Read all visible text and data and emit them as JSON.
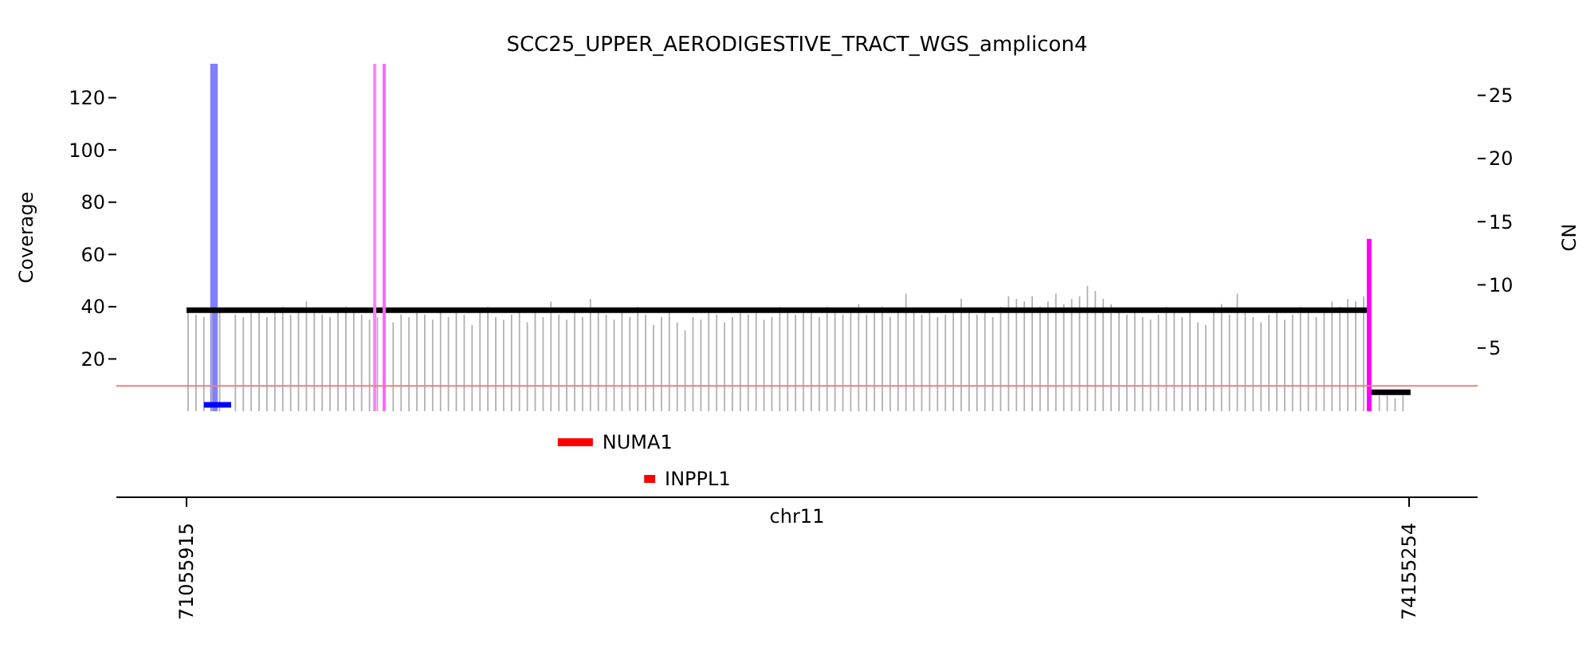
{
  "chart_data": [
    {
      "type": "bar",
      "title": "SCC25_UPPER_AERODIGESTIVE_TRACT_WGS_amplicon4",
      "ylabel": "Coverage",
      "y2label": "CN",
      "xlim": [
        70878000,
        74329000
      ],
      "ylim": [
        0,
        133
      ],
      "yticks": [
        20,
        40,
        60,
        80,
        100,
        120
      ],
      "y2lim": [
        0,
        27.5
      ],
      "y2ticks": [
        5,
        10,
        15,
        20,
        25
      ],
      "tick_labels": "y",
      "series": [
        {
          "type": "bar",
          "color": "#b0b0b0",
          "x": [
            71060000,
            71080000,
            71100000,
            71120000,
            71140000,
            71160000,
            71180000,
            71200000,
            71220000,
            71240000,
            71260000,
            71280000,
            71300000,
            71320000,
            71340000,
            71360000,
            71380000,
            71400000,
            71420000,
            71440000,
            71460000,
            71480000,
            71500000,
            71520000,
            71540000,
            71560000,
            71580000,
            71600000,
            71620000,
            71640000,
            71660000,
            71680000,
            71700000,
            71720000,
            71740000,
            71760000,
            71780000,
            71800000,
            71820000,
            71840000,
            71860000,
            71880000,
            71900000,
            71920000,
            71940000,
            71960000,
            71980000,
            72000000,
            72020000,
            72040000,
            72060000,
            72080000,
            72100000,
            72120000,
            72140000,
            72160000,
            72180000,
            72200000,
            72220000,
            72240000,
            72260000,
            72280000,
            72300000,
            72320000,
            72340000,
            72360000,
            72380000,
            72400000,
            72420000,
            72440000,
            72460000,
            72480000,
            72500000,
            72520000,
            72540000,
            72560000,
            72580000,
            72600000,
            72620000,
            72640000,
            72660000,
            72680000,
            72700000,
            72720000,
            72740000,
            72760000,
            72780000,
            72800000,
            72820000,
            72840000,
            72860000,
            72880000,
            72900000,
            72920000,
            72940000,
            72960000,
            72980000,
            73000000,
            73020000,
            73040000,
            73060000,
            73080000,
            73100000,
            73120000,
            73140000,
            73160000,
            73180000,
            73200000,
            73220000,
            73240000,
            73260000,
            73280000,
            73300000,
            73320000,
            73340000,
            73360000,
            73380000,
            73400000,
            73420000,
            73440000,
            73460000,
            73480000,
            73500000,
            73520000,
            73540000,
            73560000,
            73580000,
            73600000,
            73620000,
            73640000,
            73660000,
            73680000,
            73700000,
            73720000,
            73740000,
            73760000,
            73780000,
            73800000,
            73820000,
            73840000,
            73860000,
            73880000,
            73900000,
            73920000,
            73940000,
            73960000,
            73980000,
            74000000,
            74020000,
            74040000,
            74060000,
            74080000,
            74100000,
            74120000,
            74140000
          ],
          "values": [
            38,
            37,
            36,
            39,
            38,
            null,
            37,
            36,
            38,
            39,
            36,
            38,
            40,
            37,
            39,
            42,
            38,
            37,
            36,
            38,
            40,
            39,
            37,
            35,
            36,
            null,
            34,
            37,
            36,
            38,
            37,
            35,
            39,
            36,
            38,
            37,
            33,
            38,
            40,
            36,
            35,
            37,
            39,
            34,
            38,
            36,
            42,
            37,
            35,
            38,
            36,
            43,
            39,
            37,
            35,
            38,
            36,
            40,
            37,
            33,
            36,
            38,
            34,
            31,
            36,
            35,
            38,
            37,
            34,
            36,
            39,
            37,
            38,
            35,
            36,
            40,
            38,
            37,
            39,
            38,
            36,
            40,
            38,
            37,
            39,
            41,
            37,
            38,
            40,
            36,
            38,
            45,
            39,
            37,
            38,
            36,
            37,
            38,
            43,
            38,
            37,
            39,
            36,
            40,
            44,
            43,
            42,
            44,
            40,
            42,
            45,
            41,
            43,
            44,
            48,
            46,
            43,
            41,
            38,
            37,
            39,
            36,
            35,
            37,
            40,
            38,
            36,
            39,
            34,
            33,
            38,
            41,
            37,
            45,
            39,
            36,
            34,
            37,
            38,
            35,
            37,
            40,
            39,
            36,
            38,
            42,
            40,
            43,
            42,
            44,
            null,
            6,
            6,
            5,
            6
          ]
        },
        {
          "type": "line",
          "axis": "y2",
          "color": "#000000",
          "x": [
            71055915,
            74050000
          ],
          "values": [
            8,
            8
          ]
        },
        {
          "type": "line",
          "axis": "y2",
          "color": "#000000",
          "x": [
            74050000,
            74159000
          ],
          "values": [
            1.5,
            1.5
          ]
        },
        {
          "type": "line",
          "axis": "y2",
          "color": "#0000ff",
          "x": [
            71100000,
            71169000
          ],
          "values": [
            0.5,
            0.5
          ]
        },
        {
          "type": "line",
          "color": "#ff00ff",
          "x": [
            74054000,
            74054000
          ],
          "values": [
            0,
            66
          ]
        }
      ],
      "bands": [
        {
          "axis": "x",
          "from": 71116000,
          "to": 71135000,
          "color": "#8080ff"
        }
      ],
      "ref_lines": [
        {
          "axis": "x",
          "value": 71533000,
          "color": "#ff80ff"
        },
        {
          "axis": "x",
          "value": 71557000,
          "color": "#ff66ff"
        },
        {
          "axis": "y2",
          "value": 2,
          "color": "#f08080"
        }
      ]
    },
    {
      "type": "bar",
      "orientation": "horizontal",
      "xlabel": "chr11",
      "categories": [
        "NUMA1",
        "INPPL1"
      ],
      "base": [
        71997000,
        72216000
      ],
      "values": [
        89000,
        28000
      ],
      "color": "#ff0000",
      "data_labels": false,
      "xlim": [
        70878000,
        74329000
      ],
      "xticks": [
        71055915,
        74155254
      ]
    }
  ]
}
